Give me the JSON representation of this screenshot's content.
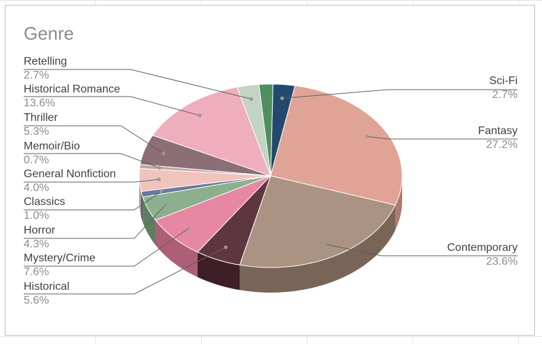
{
  "chart_data": {
    "type": "pie",
    "title": "Genre",
    "slices": [
      {
        "label": "Sci-Fi",
        "value": 2.7,
        "display": "2.7%",
        "color": "#234a6e",
        "side_color": "#173452"
      },
      {
        "label": "Fantasy",
        "value": 27.2,
        "display": "27.2%",
        "color": "#e0a496",
        "side_color": "#b07a6e"
      },
      {
        "label": "Contemporary",
        "value": 23.6,
        "display": "23.6%",
        "color": "#ab9383",
        "side_color": "#786558"
      },
      {
        "label": "Historical",
        "value": 5.6,
        "display": "5.6%",
        "color": "#5e3640",
        "side_color": "#3e1f27"
      },
      {
        "label": "Mystery/Crime",
        "value": 7.6,
        "display": "7.6%",
        "color": "#e687a4",
        "side_color": "#ad5f77"
      },
      {
        "label": "Horror",
        "value": 4.3,
        "display": "4.3%",
        "color": "#8cb08d",
        "side_color": "#5e7e60"
      },
      {
        "label": "Classics",
        "value": 1.0,
        "display": "1.0%",
        "color": "#6a7a9e",
        "side_color": "#48566f"
      },
      {
        "label": "General Nonfiction",
        "value": 4.0,
        "display": "4.0%",
        "color": "#f0c4bd",
        "side_color": "#bc958e"
      },
      {
        "label": "Memoir/Bio",
        "value": 0.7,
        "display": "0.7%",
        "color": "#c2a4a4",
        "side_color": "#917878"
      },
      {
        "label": "Thriller",
        "value": 5.3,
        "display": "5.3%",
        "color": "#8c6e76",
        "side_color": "#604b51"
      },
      {
        "label": "Historical Romance",
        "value": 13.6,
        "display": "13.6%",
        "color": "#eeaebe",
        "side_color": "#b98290"
      },
      {
        "label": "Retelling",
        "value": 2.7,
        "display": "2.7%",
        "color": "#c3d3c4",
        "side_color": "#8fa191"
      },
      {
        "label": "",
        "value": 1.7,
        "display": "",
        "color": "#4f8f5e",
        "side_color": "#376a43"
      }
    ],
    "legend": "none",
    "label_placement": "outside-with-leader-lines"
  }
}
